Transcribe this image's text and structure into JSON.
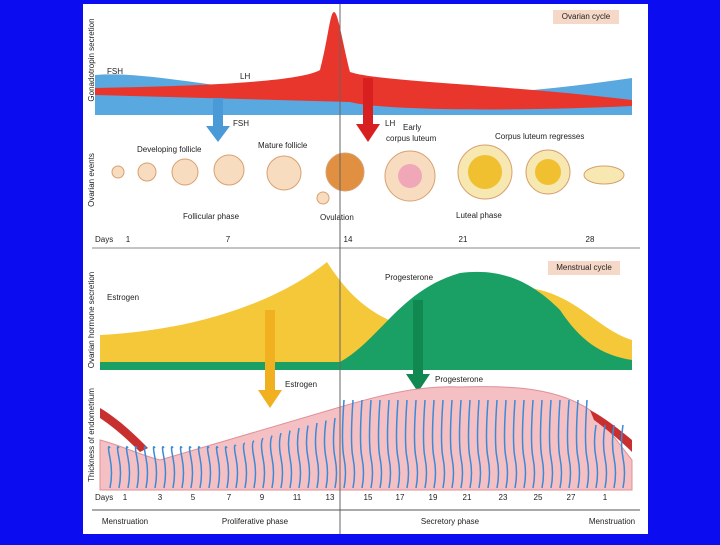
{
  "ovarian_cycle": {
    "title": "Ovarian cycle",
    "axis_labels": [
      "Gonadotropin secretion",
      "Ovarian events"
    ],
    "annotations": [
      "FSH",
      "LH",
      "FSH",
      "LH",
      "Early",
      "corpus luteum",
      "Developing follicle",
      "Mature follicle",
      "Corpus luteum regresses",
      "Follicular phase",
      "Ovulation",
      "Luteal phase"
    ],
    "days_label": "Days",
    "days": [
      "1",
      "7",
      "14",
      "21",
      "28"
    ]
  },
  "menstrual_cycle": {
    "title": "Menstrual cycle",
    "axis_labels": [
      "Ovarian hormone secretion",
      "Thickness of endometrium"
    ],
    "annotations": [
      "Progesterone",
      "Estrogen",
      "Estrogen",
      "Progesterone"
    ],
    "days_label": "Days",
    "days": [
      "1",
      "3",
      "5",
      "7",
      "9",
      "11",
      "13",
      "15",
      "17",
      "19",
      "21",
      "23",
      "25",
      "27",
      "1"
    ],
    "phases": [
      "Menstruation",
      "Proliferative phase",
      "Secretory phase",
      "Menstruation"
    ]
  }
}
